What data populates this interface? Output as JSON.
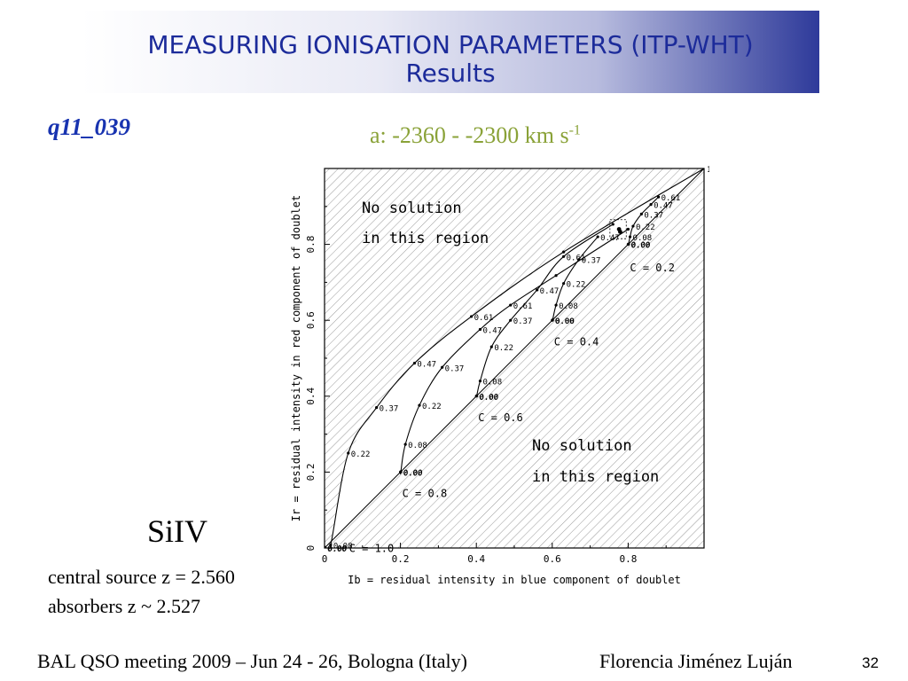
{
  "header": {
    "title_line_1": "MEASURING IONISATION PARAMETERS (ITP-WHT)",
    "title_line_2": "Results"
  },
  "object_id": "q11_039",
  "velocity": {
    "text": "a: -2360 - -2300 km s",
    "sup": "-1"
  },
  "ion_label": "SiIV",
  "info": {
    "line1": "central source z = 2.560",
    "line2": "absorbers z ~ 2.527"
  },
  "footer": {
    "meeting": "BAL QSO meeting 2009 – Jun 24 - 26, Bologna (Italy)",
    "author": "Florencia Jiménez Luján",
    "page": "32"
  },
  "colors": {
    "title_text": "#1c2b9a",
    "object_id": "#1833b0",
    "velocity_text": "#8aa238",
    "banner_dark": "#2e3a9a"
  },
  "chart_data": {
    "type": "line",
    "xlabel": "Ib = residual intensity in blue component of doublet",
    "ylabel": "Ir = residual intensity in red component of doublet",
    "xlim": [
      0,
      1.0
    ],
    "ylim": [
      0,
      1.0
    ],
    "x_ticks": [
      "0",
      "0.2",
      "0.4",
      "0.6",
      "0.8"
    ],
    "y_ticks": [
      "0",
      "0.2",
      "0.4",
      "0.6",
      "0.8"
    ],
    "grid": false,
    "regions": [
      {
        "label_line1": "No solution",
        "label_line2": "in this region",
        "where": "top-left"
      },
      {
        "label_line1": "No solution",
        "label_line2": "in this region",
        "where": "bottom-right"
      }
    ],
    "series": [
      {
        "c_label": "C =  1.0",
        "points": [
          [
            0,
            0
          ],
          [
            0.0015,
            0.0015
          ],
          [
            0.016,
            0.008
          ],
          [
            0.0625,
            0.25
          ],
          [
            0.137,
            0.37
          ],
          [
            0.237,
            0.487
          ],
          [
            0.387,
            0.61
          ],
          [
            0.63,
            0.78
          ],
          [
            1.0,
            1.0
          ]
        ],
        "point_labels": [
          "0.00",
          "0.00",
          "0.08",
          "0.22",
          "0.37",
          "0.47",
          "0.61",
          "",
          "1.00"
        ]
      },
      {
        "c_label": "C =  0.8",
        "points": [
          [
            0.2,
            0.2
          ],
          [
            0.201,
            0.201
          ],
          [
            0.213,
            0.273
          ],
          [
            0.25,
            0.376
          ],
          [
            0.31,
            0.476
          ],
          [
            0.41,
            0.576
          ],
          [
            0.49,
            0.64
          ],
          [
            0.61,
            0.718
          ],
          [
            0.8,
            0.84
          ]
        ],
        "point_labels": [
          "0.00",
          "0.00",
          "0.08",
          "0.22",
          "0.37",
          "0.47",
          "0.61",
          "",
          ""
        ]
      },
      {
        "c_label": "C =  0.6",
        "points": [
          [
            0.4,
            0.4
          ],
          [
            0.401,
            0.401
          ],
          [
            0.41,
            0.44
          ],
          [
            0.44,
            0.53
          ],
          [
            0.49,
            0.6
          ],
          [
            0.56,
            0.68
          ],
          [
            0.63,
            0.768
          ],
          [
            0.76,
            0.853
          ]
        ],
        "point_labels": [
          "0.00",
          "0.00",
          "0.08",
          "0.22",
          "0.37",
          "0.47",
          "0.61",
          ""
        ]
      },
      {
        "c_label": "C =  0.4",
        "points": [
          [
            0.6,
            0.6
          ],
          [
            0.601,
            0.601
          ],
          [
            0.61,
            0.64
          ],
          [
            0.63,
            0.697
          ],
          [
            0.67,
            0.76
          ],
          [
            0.72,
            0.82
          ]
        ],
        "point_labels": [
          "0.00",
          "0.00",
          "0.08",
          "0.22",
          "0.37",
          "0.47"
        ]
      },
      {
        "c_label": "C =  0.2",
        "points": [
          [
            0.8,
            0.8
          ],
          [
            0.801,
            0.801
          ],
          [
            0.805,
            0.82
          ],
          [
            0.813,
            0.848
          ],
          [
            0.835,
            0.88
          ],
          [
            0.86,
            0.905
          ],
          [
            0.88,
            0.925
          ]
        ],
        "point_labels": [
          "0.00",
          "0.00",
          "0.08",
          "0.22",
          "0.37",
          "0.47",
          "0.61"
        ]
      }
    ],
    "measured_points": [
      [
        0.776,
        0.84
      ],
      [
        0.779,
        0.833
      ]
    ]
  }
}
